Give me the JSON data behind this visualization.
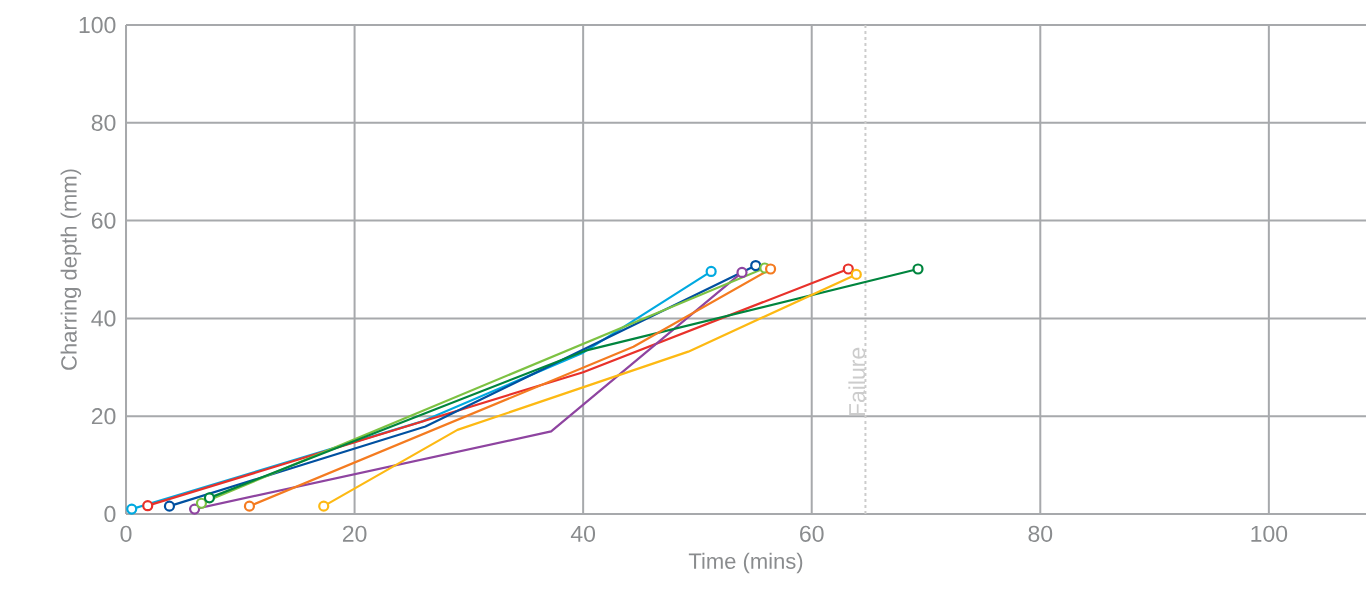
{
  "chart_data": {
    "type": "line",
    "xlabel": "Time (mins)",
    "ylabel": "Charring depth (mm)",
    "xlim": [
      0,
      108.5
    ],
    "ylim": [
      0,
      100
    ],
    "xticks": [
      0,
      20,
      40,
      60,
      80,
      100
    ],
    "yticks": [
      0,
      20,
      40,
      60,
      80,
      100
    ],
    "grid": true,
    "marker": "circle",
    "line_style": "solid",
    "ref_lines": [
      {
        "axis": "x",
        "value": 64.7,
        "label": "Failure",
        "color": "#cccccc",
        "line_style": "dashed"
      }
    ],
    "series": [
      {
        "color": "#00a9e0",
        "x": [
          0.5,
          26,
          40,
          51.2
        ],
        "values": [
          1,
          19,
          33,
          49.6
        ]
      },
      {
        "color": "#e8312a",
        "x": [
          1.9,
          40,
          63.2
        ],
        "values": [
          1.7,
          29,
          50.1
        ]
      },
      {
        "color": "#0050a0",
        "x": [
          3.8,
          26.2,
          55.1
        ],
        "values": [
          1.6,
          17.9,
          50.8
        ]
      },
      {
        "color": "#8e44a0",
        "x": [
          6.0,
          37.2,
          53.9
        ],
        "values": [
          1.0,
          16.9,
          49.4
        ]
      },
      {
        "color": "#7dc242",
        "x": [
          6.6,
          55.9
        ],
        "values": [
          2.2,
          50.3
        ]
      },
      {
        "color": "#00853e",
        "x": [
          7.3,
          24,
          40.2,
          69.3
        ],
        "values": [
          3.3,
          18.6,
          33.4,
          50.1
        ]
      },
      {
        "color": "#f47b20",
        "x": [
          10.8,
          44.4,
          56.4
        ],
        "values": [
          1.6,
          34.2,
          50.1
        ]
      },
      {
        "color": "#fdb913",
        "x": [
          17.3,
          29,
          49.2,
          63.9
        ],
        "values": [
          1.6,
          17.2,
          33.2,
          49.0
        ]
      }
    ]
  }
}
